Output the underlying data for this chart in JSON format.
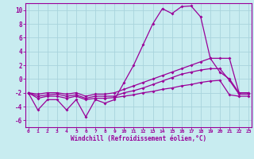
{
  "xlabel": "Windchill (Refroidissement éolien,°C)",
  "background_color": "#c8ecf0",
  "grid_color": "#a8d4dc",
  "line_color": "#990099",
  "hours": [
    0,
    1,
    2,
    3,
    4,
    5,
    6,
    7,
    8,
    9,
    10,
    11,
    12,
    13,
    14,
    15,
    16,
    17,
    18,
    19,
    20,
    21,
    22,
    23
  ],
  "windchill": [
    -2,
    -4.5,
    -3,
    -3,
    -4.5,
    -3,
    -5.5,
    -3,
    -3.5,
    -3,
    -0.5,
    2,
    5,
    8,
    10.2,
    9.5,
    10.5,
    10.6,
    9,
    3,
    1,
    0,
    -2,
    -2
  ],
  "line_top": [
    -2,
    -2.2,
    -2.0,
    -2.0,
    -2.2,
    -2.0,
    -2.5,
    -2.2,
    -2.2,
    -2.0,
    -1.5,
    -1.0,
    -0.5,
    0.0,
    0.5,
    1.0,
    1.5,
    2.0,
    2.5,
    3.0,
    3.0,
    3.0,
    -2.0,
    -2.0
  ],
  "line_mid": [
    -2,
    -2.5,
    -2.3,
    -2.2,
    -2.5,
    -2.3,
    -2.8,
    -2.5,
    -2.5,
    -2.5,
    -2.0,
    -1.7,
    -1.3,
    -0.8,
    -0.3,
    0.2,
    0.7,
    1.0,
    1.3,
    1.5,
    1.5,
    -0.2,
    -2.2,
    -2.2
  ],
  "line_bot": [
    -2,
    -2.8,
    -2.5,
    -2.5,
    -2.8,
    -2.5,
    -3.0,
    -2.8,
    -2.8,
    -2.7,
    -2.5,
    -2.3,
    -2.0,
    -1.8,
    -1.5,
    -1.3,
    -1.0,
    -0.8,
    -0.5,
    -0.3,
    -0.2,
    -2.3,
    -2.5,
    -2.5
  ],
  "xlim": [
    -0.3,
    23.3
  ],
  "ylim": [
    -7,
    11
  ],
  "yticks": [
    -6,
    -4,
    -2,
    0,
    2,
    4,
    6,
    8,
    10
  ],
  "xticks": [
    0,
    1,
    2,
    3,
    4,
    5,
    6,
    7,
    8,
    9,
    10,
    11,
    12,
    13,
    14,
    15,
    16,
    17,
    18,
    19,
    20,
    21,
    22,
    23
  ]
}
